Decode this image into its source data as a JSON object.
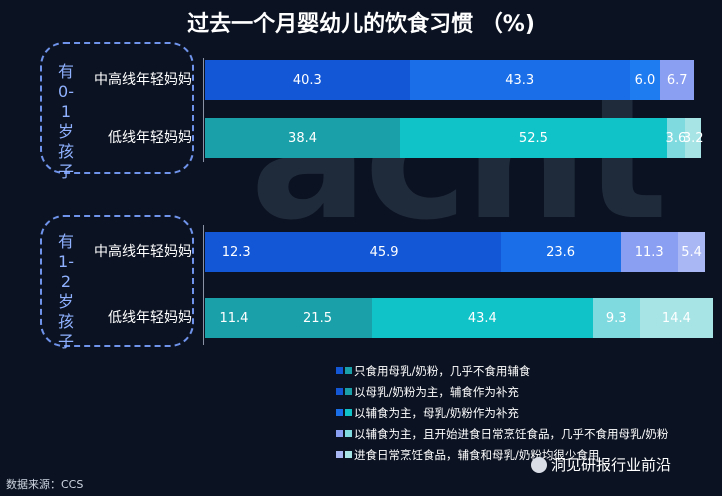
{
  "title": "过去一个月婴幼儿的饮食习惯 （%)",
  "watermark": "acnt",
  "source": "数据来源：CCS",
  "brand": "洞见研报行业前沿",
  "groups": [
    {
      "label": "有0-1岁孩子"
    },
    {
      "label": "有1-2岁孩子"
    }
  ],
  "colors": [
    "#1457d6",
    "#1a6fe8",
    "#1aa0a8",
    "#10c3c8",
    "#8a9ff2",
    "#a7e4e6"
  ],
  "chart_data": {
    "type": "bar",
    "orientation": "horizontal",
    "stacked": true,
    "categories": [
      "中高线年轻妈妈",
      "低线年轻妈妈",
      "中高线年轻妈妈",
      "低线年轻妈妈"
    ],
    "category_groups": [
      "有0-1岁孩子",
      "有0-1岁孩子",
      "有1-2岁孩子",
      "有1-2岁孩子"
    ],
    "series": [
      {
        "name": "只食用母乳/奶粉，几乎不食用辅食",
        "values": [
          0,
          0,
          12.3,
          11.4
        ]
      },
      {
        "name": "以母乳/奶粉为主，辅食作为补充",
        "values": [
          40.3,
          38.4,
          45.9,
          21.5
        ]
      },
      {
        "name": "以辅食为主，母乳/奶粉作为补充",
        "values": [
          43.3,
          52.5,
          23.6,
          43.4
        ]
      },
      {
        "name": "以辅食为主，且开始进食日常烹饪食品，几乎不食用母乳/奶粉",
        "values": [
          6.0,
          3.6,
          11.3,
          9.3
        ]
      },
      {
        "name": "进食日常烹饪食品，辅食和母乳/奶粉均很少食用",
        "values": [
          6.7,
          3.2,
          5.4,
          14.4
        ]
      }
    ],
    "row_colors": [
      [
        "#1457d6",
        "#1457d6",
        "#1a6fe8",
        "#1f7bf0",
        "#8a9ff2"
      ],
      [
        "#1aa0a8",
        "#1aa0a8",
        "#10c3c8",
        "#7fdadf",
        "#a7e4e6"
      ],
      [
        "#1457d6",
        "#1457d6",
        "#1a6fe8",
        "#8a9ff2",
        "#a9b8f5"
      ],
      [
        "#1aa0a8",
        "#1aa0a8",
        "#10c3c8",
        "#7fdadf",
        "#a7e4e6"
      ]
    ],
    "legend_colors": [
      [
        "#1457d6",
        "#1aa0a8"
      ],
      [
        "#1457d6",
        "#1aa0a8"
      ],
      [
        "#1a6fe8",
        "#10c3c8"
      ],
      [
        "#8a9ff2",
        "#7fdadf"
      ],
      [
        "#a9b8f5",
        "#a7e4e6"
      ]
    ],
    "value_labels": [
      [
        "",
        "40.3",
        "43.3",
        "6.0",
        "6.7"
      ],
      [
        "",
        "38.4",
        "52.5",
        "3.6",
        "3.2"
      ],
      [
        "12.3",
        "45.9",
        "23.6",
        "11.3",
        "5.4"
      ],
      [
        "11.4",
        "21.5",
        "43.4",
        "9.3",
        "14.4"
      ]
    ],
    "legend_position": "bottom-right",
    "xlim": [
      0,
      100
    ]
  }
}
